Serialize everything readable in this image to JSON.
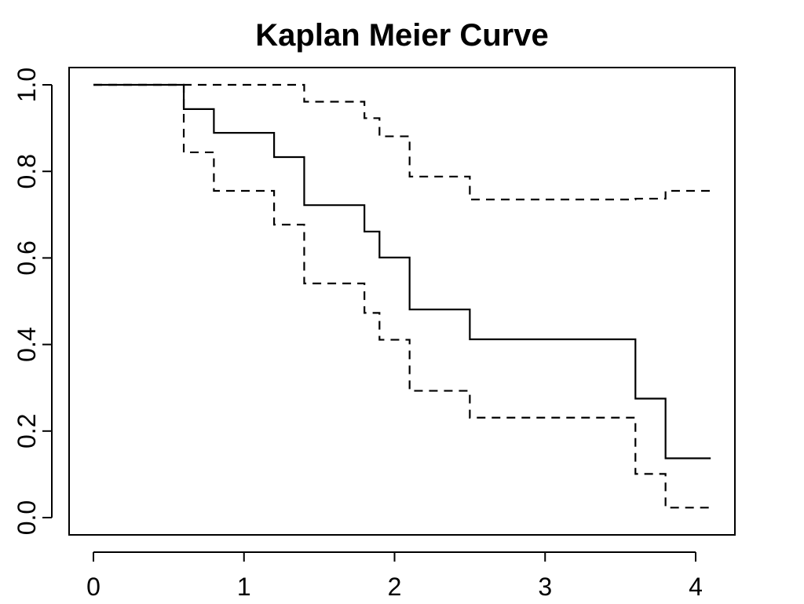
{
  "chart_data": {
    "type": "line",
    "title": "Kaplan Meier Curve",
    "xlabel": "",
    "ylabel": "",
    "xlim": [
      0,
      4.1
    ],
    "ylim": [
      0,
      1.0
    ],
    "x_ticks": [
      "0",
      "1",
      "2",
      "3",
      "4"
    ],
    "y_ticks": [
      "0.0",
      "0.2",
      "0.4",
      "0.6",
      "0.8",
      "1.0"
    ],
    "step": true,
    "grid": false,
    "series": [
      {
        "style": "solid",
        "x": [
          0,
          0.6,
          0.8,
          1.2,
          1.4,
          1.8,
          1.9,
          2.1,
          2.5,
          3.6,
          3.8,
          4.1
        ],
        "y": [
          1.0,
          0.944,
          0.889,
          0.833,
          0.722,
          0.661,
          0.601,
          0.481,
          0.412,
          0.275,
          0.137,
          0.137
        ]
      },
      {
        "style": "dashed",
        "x": [
          0,
          0.6,
          0.8,
          1.2,
          1.4,
          1.8,
          1.9,
          2.1,
          2.5,
          3.6,
          3.8,
          4.1
        ],
        "y": [
          1.0,
          1.0,
          1.0,
          1.0,
          0.961,
          0.923,
          0.881,
          0.788,
          0.735,
          0.737,
          0.755,
          0.755
        ]
      },
      {
        "style": "dashed",
        "x": [
          0,
          0.6,
          0.8,
          1.2,
          1.4,
          1.8,
          1.9,
          2.1,
          2.5,
          3.6,
          3.8,
          4.1
        ],
        "y": [
          1.0,
          0.844,
          0.755,
          0.677,
          0.541,
          0.473,
          0.411,
          0.293,
          0.231,
          0.101,
          0.023,
          0.023
        ]
      }
    ]
  }
}
